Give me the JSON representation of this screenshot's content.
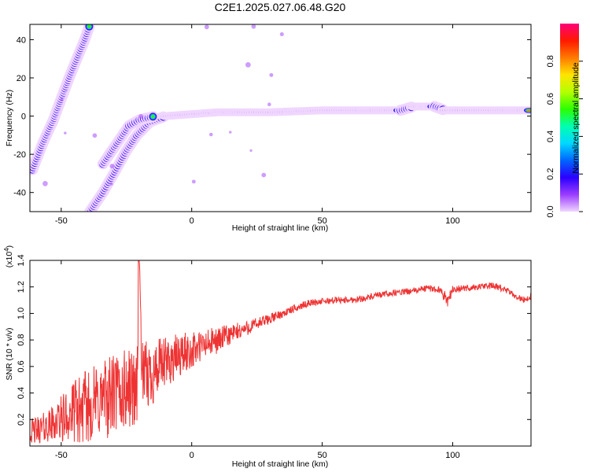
{
  "title": "C2E1.2025.027.06.48.G20",
  "chart_data": [
    {
      "type": "heatmap",
      "xlabel": "Height of straight line (km)",
      "ylabel": "Frequency (Hz)",
      "xlim": [
        -62,
        130
      ],
      "ylim": [
        -50,
        48
      ],
      "xticks": [
        -50,
        0,
        50,
        100
      ],
      "yticks": [
        -40,
        -20,
        0,
        20,
        40
      ],
      "colorbar": {
        "label": "Normalized spectral amplitude",
        "range": [
          0,
          1
        ],
        "ticks": [
          "0.0",
          "0.2",
          "0.4",
          "0.6",
          "0.8"
        ],
        "tick_values": [
          0.0,
          0.2,
          0.4,
          0.6,
          0.8
        ],
        "colormap": [
          "#f0d6ff",
          "#9b3cff",
          "#2a00ff",
          "#0066ff",
          "#00d8ff",
          "#00ffb0",
          "#2cff00",
          "#b4ff00",
          "#ffe400",
          "#ff7a00",
          "#ff1a00",
          "#ff007a"
        ]
      },
      "ridges": [
        {
          "name": "",
          "points": [
            [
              -61,
              -28
            ],
            [
              -57,
              -14
            ],
            [
              -53,
              -2
            ],
            [
              -50,
              9
            ],
            [
              -47,
              20
            ],
            [
              -44,
              30
            ],
            [
              -41,
              40
            ],
            [
              -39,
              48
            ]
          ]
        },
        {
          "name": "",
          "points": [
            [
              -39,
              -50
            ],
            [
              -34,
              -40
            ],
            [
              -29,
              -28
            ],
            [
              -25,
              -18
            ],
            [
              -21,
              -10
            ],
            [
              -16,
              -3
            ],
            [
              -10,
              0
            ],
            [
              0,
              1
            ]
          ]
        },
        {
          "name": "",
          "points": [
            [
              -34,
              -25
            ],
            [
              -29,
              -15
            ],
            [
              -24,
              -5
            ],
            [
              -20,
              -2
            ],
            [
              -14,
              0
            ]
          ]
        },
        {
          "name": "",
          "points": [
            [
              0,
              1
            ],
            [
              10,
              2
            ],
            [
              30,
              2
            ],
            [
              50,
              3
            ],
            [
              70,
              3
            ],
            [
              80,
              3
            ],
            [
              85,
              5
            ],
            [
              93,
              5
            ],
            [
              97,
              3
            ],
            [
              110,
              3
            ],
            [
              130,
              3
            ]
          ]
        }
      ]
    },
    {
      "type": "line",
      "xlabel": "Height of straight line (km)",
      "ylabel": "SNR (10 * v/v)",
      "y_multiplier": "(x10",
      "y_multiplier_exp": "4",
      "y_multiplier_close": ")",
      "xlim": [
        -62,
        130
      ],
      "ylim": [
        0,
        1.4
      ],
      "xticks": [
        -50,
        0,
        50,
        100
      ],
      "yticks": [
        0.2,
        0.4,
        0.6,
        0.8,
        1.0,
        1.2,
        1.4
      ],
      "ytick_labels": [
        "0.2",
        "0.4",
        "0.6",
        "0.8",
        "1.0",
        "1.2",
        "1.4"
      ],
      "color": "#ee3333",
      "series": [
        {
          "name": "",
          "x": [
            -62,
            -55,
            -50,
            -45,
            -40,
            -35,
            -30,
            -25,
            -21,
            -20,
            -19,
            -15,
            -10,
            -5,
            0,
            5,
            10,
            15,
            20,
            25,
            30,
            35,
            40,
            45,
            50,
            55,
            60,
            65,
            70,
            75,
            80,
            85,
            90,
            95,
            98,
            100,
            105,
            110,
            115,
            120,
            125,
            128,
            130
          ],
          "y": [
            0.1,
            0.15,
            0.2,
            0.25,
            0.3,
            0.35,
            0.38,
            0.42,
            0.45,
            1.4,
            0.5,
            0.55,
            0.62,
            0.68,
            0.72,
            0.76,
            0.8,
            0.84,
            0.88,
            0.92,
            0.96,
            1.0,
            1.04,
            1.08,
            1.09,
            1.1,
            1.1,
            1.11,
            1.13,
            1.15,
            1.16,
            1.17,
            1.19,
            1.18,
            1.1,
            1.18,
            1.19,
            1.2,
            1.21,
            1.18,
            1.12,
            1.1,
            1.13
          ],
          "noise_amplitude": [
            0.1,
            0.12,
            0.18,
            0.25,
            0.28,
            0.3,
            0.32,
            0.32,
            0.3,
            0.0,
            0.28,
            0.25,
            0.2,
            0.17,
            0.14,
            0.12,
            0.1,
            0.08,
            0.06,
            0.05,
            0.04,
            0.03,
            0.03,
            0.025,
            0.025,
            0.025,
            0.025,
            0.025,
            0.025,
            0.025,
            0.025,
            0.025,
            0.025,
            0.025,
            0.05,
            0.03,
            0.025,
            0.025,
            0.025,
            0.025,
            0.025,
            0.025,
            0.025
          ]
        }
      ]
    }
  ]
}
